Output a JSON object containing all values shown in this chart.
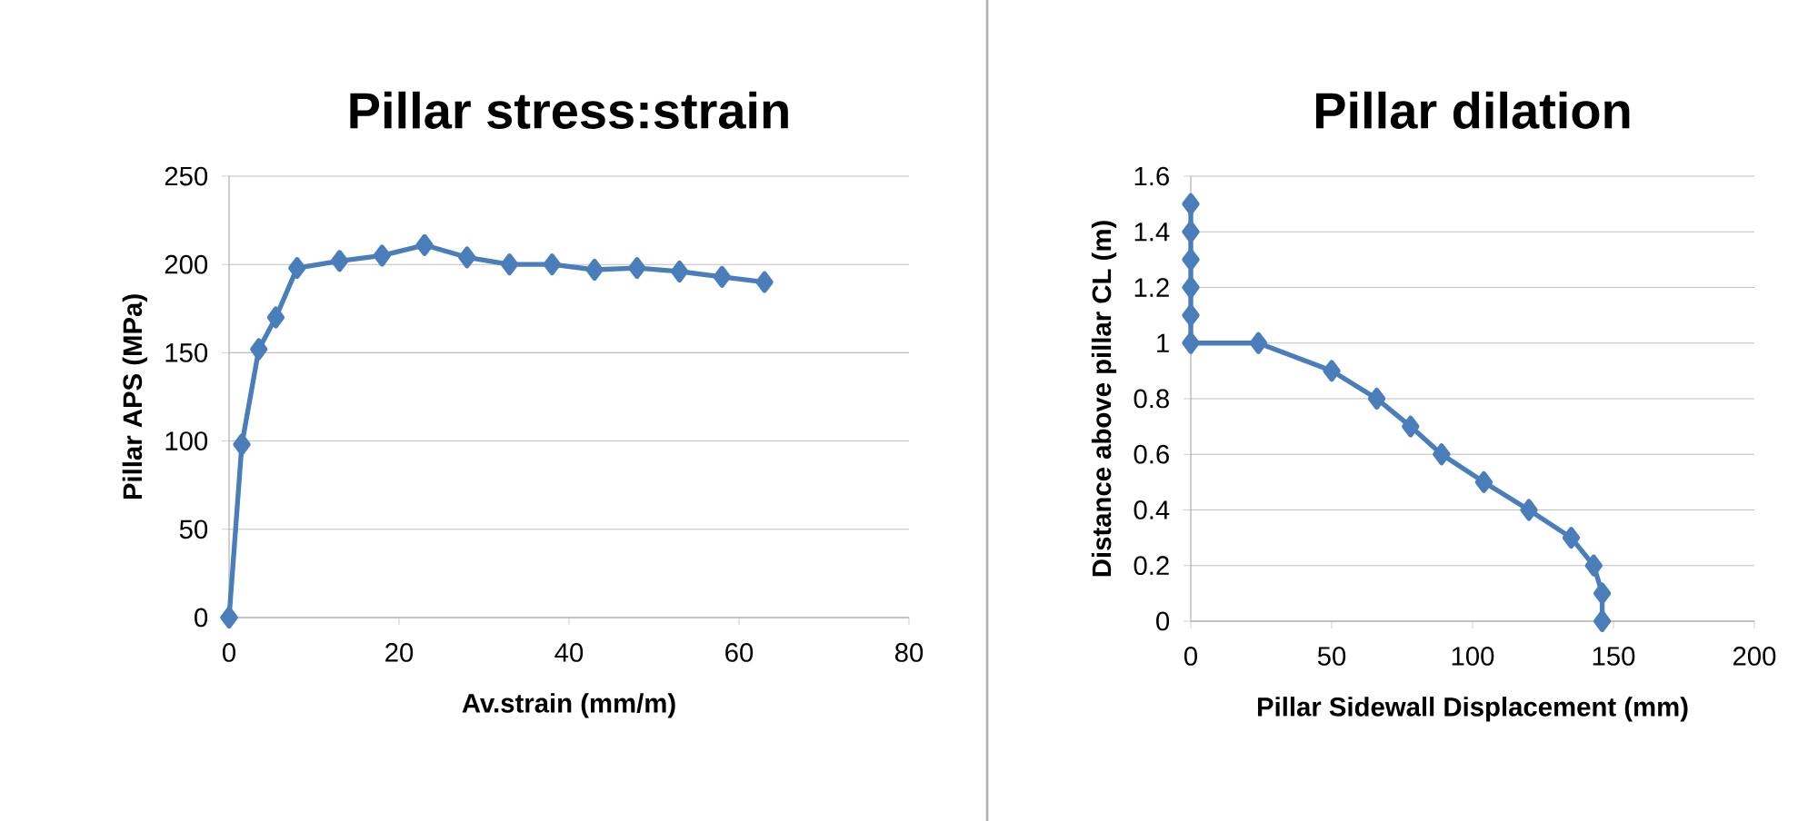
{
  "chart_data": [
    {
      "type": "line",
      "title": "Pillar stress:strain",
      "xlabel": "Av.strain (mm/m)",
      "ylabel": "Pillar APS (MPa)",
      "xlim": [
        0,
        80
      ],
      "xticks": [
        0,
        20,
        40,
        60,
        80
      ],
      "ylim": [
        0,
        250
      ],
      "yticks": [
        0,
        50,
        100,
        150,
        200,
        250
      ],
      "grid": "y",
      "marker": "diamond",
      "line_style": "solid",
      "series": [
        {
          "color": "#4a7ebb",
          "x": [
            0,
            1.5,
            3.5,
            5.5,
            8,
            13,
            18,
            23,
            28,
            33,
            38,
            43,
            48,
            53,
            58,
            63
          ],
          "values": [
            0,
            98,
            152,
            170,
            198,
            202,
            205,
            211,
            204,
            200,
            200,
            197,
            198,
            196,
            193,
            190
          ]
        }
      ]
    },
    {
      "type": "line",
      "title": "Pillar dilation",
      "xlabel": "Pillar Sidewall Displacement (mm)",
      "ylabel": "Distance above pillar CL (m)",
      "xlim": [
        0,
        200
      ],
      "xticks": [
        0,
        50,
        100,
        150,
        200
      ],
      "ylim": [
        0,
        1.6
      ],
      "yticks": [
        0,
        0.2,
        0.4,
        0.6,
        0.8,
        {
          "value": 1,
          "label": "1"
        },
        1.2,
        1.4,
        1.6
      ],
      "grid": "y",
      "marker": "diamond",
      "line_style": "solid",
      "series": [
        {
          "color": "#4a7ebb",
          "x": [
            0,
            0,
            0,
            0,
            0,
            0,
            24,
            50,
            66,
            78,
            89,
            104,
            120,
            135,
            143,
            146,
            146
          ],
          "values": [
            1.5,
            1.4,
            1.3,
            1.2,
            1.1,
            1.0,
            1.0,
            0.9,
            0.8,
            0.7,
            0.6,
            0.5,
            0.4,
            0.3,
            0.2,
            0.1,
            0
          ]
        }
      ]
    }
  ]
}
